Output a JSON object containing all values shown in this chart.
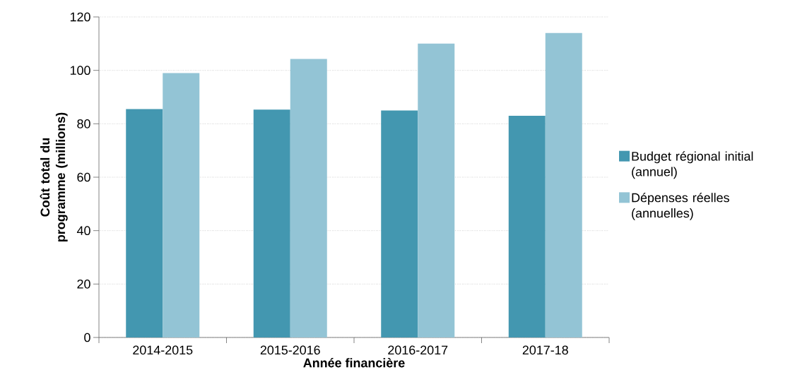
{
  "chart_data": {
    "type": "bar",
    "xlabel": "Année financière",
    "ylabel": "Coût total du programme (millions)",
    "categories": [
      "2014-2015",
      "2015-2016",
      "2016-2017",
      "2017-18"
    ],
    "series": [
      {
        "name": "Budget régional initial (annuel)",
        "color": "#4397b0",
        "values": [
          85.5,
          85.3,
          85,
          83
        ]
      },
      {
        "name": "Dépenses réelles (annuelles)",
        "color": "#93c4d5",
        "values": [
          99,
          104.3,
          110,
          114
        ]
      }
    ],
    "ylim": [
      0,
      120
    ],
    "yticks": [
      0,
      20,
      40,
      60,
      80,
      100,
      120
    ],
    "grid": "y",
    "legend": "right"
  }
}
